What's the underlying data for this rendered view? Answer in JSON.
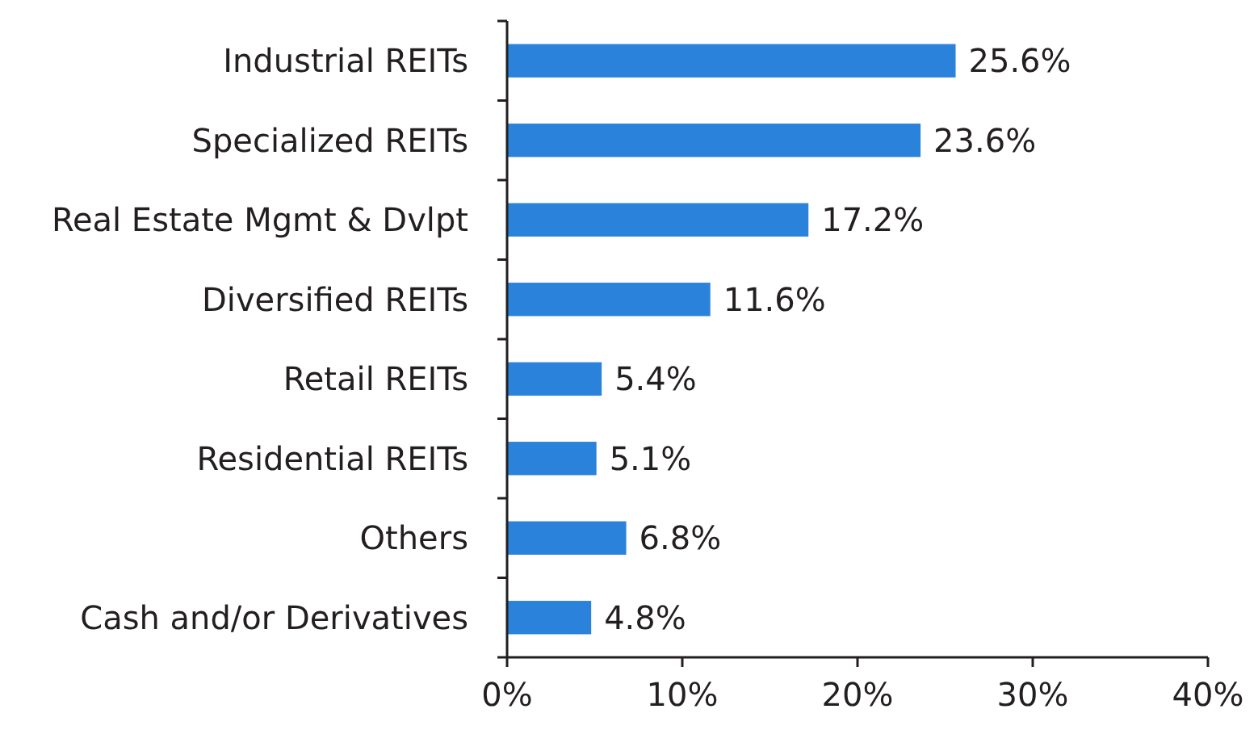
{
  "chart_data": {
    "type": "bar",
    "orientation": "horizontal",
    "categories": [
      "Industrial REITs",
      "Specialized REITs",
      "Real Estate Mgmt & Dvlpt",
      "Diversified REITs",
      "Retail REITs",
      "Residential REITs",
      "Others",
      "Cash and/or Derivatives"
    ],
    "values": [
      25.6,
      23.6,
      17.2,
      11.6,
      5.4,
      5.1,
      6.8,
      4.8
    ],
    "value_labels": [
      "25.6%",
      "23.6%",
      "17.2%",
      "11.6%",
      "5.4%",
      "5.1%",
      "6.8%",
      "4.8%"
    ],
    "color": "#2a82da",
    "xlim": [
      0,
      40
    ],
    "xticks": [
      {
        "value": 0,
        "label": "0%"
      },
      {
        "value": 10,
        "label": "10%"
      },
      {
        "value": 20,
        "label": "20%"
      },
      {
        "value": 30,
        "label": "30%"
      },
      {
        "value": 40,
        "label": "40%"
      }
    ],
    "grid": false
  }
}
